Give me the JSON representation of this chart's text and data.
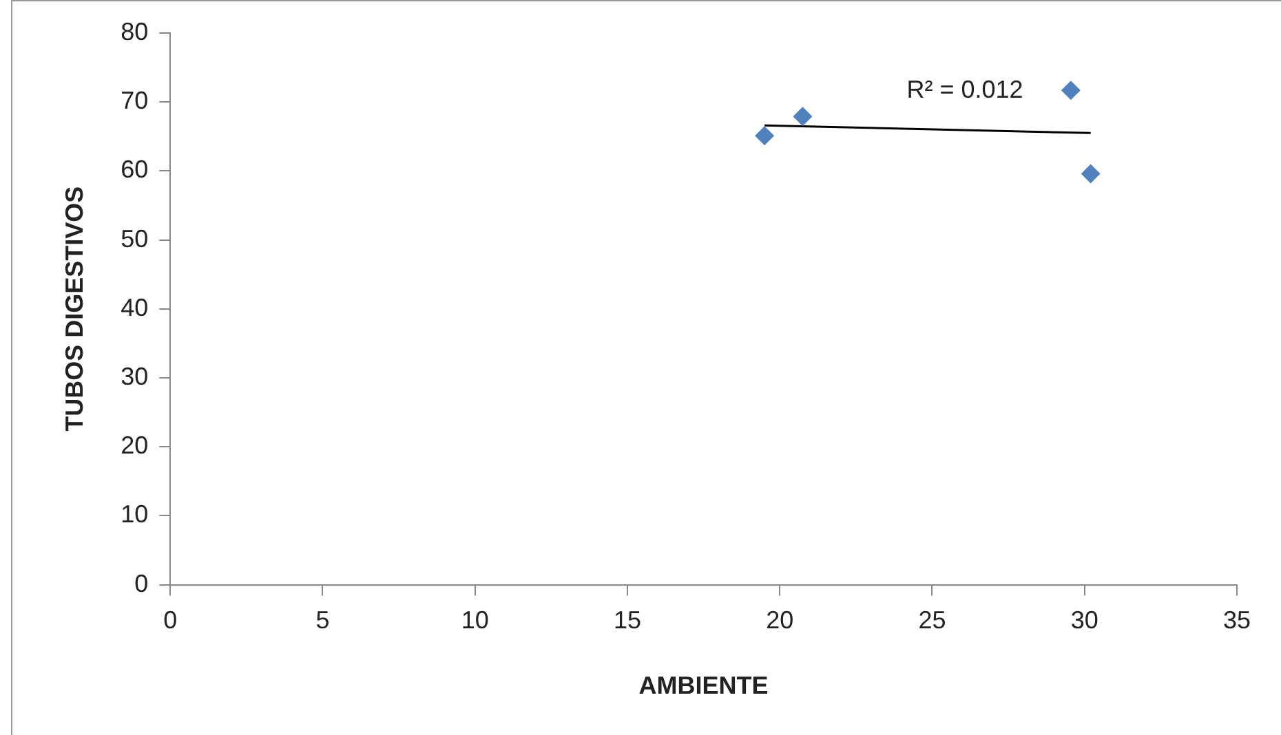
{
  "chart_data": {
    "type": "scatter",
    "xlabel": "AMBIENTE",
    "ylabel": "TUBOS DIGESTIVOS",
    "x": [
      19.5,
      20.75,
      29.55,
      30.2
    ],
    "series": [
      {
        "color": "#4f81bd",
        "marker": "diamond",
        "values": [
          65.1,
          67.9,
          71.7,
          59.6
        ]
      },
      {
        "type": "line",
        "color": "#000000",
        "marker": "none",
        "x": [
          19.5,
          30.2
        ],
        "values": [
          66.6,
          65.5
        ]
      }
    ],
    "xlim": [
      0,
      35
    ],
    "xticks": [
      0,
      5,
      10,
      15,
      20,
      25,
      30,
      35
    ],
    "ylim": [
      0,
      80
    ],
    "yticks": [
      0,
      10,
      20,
      30,
      40,
      50,
      60,
      70,
      80
    ],
    "grid": false,
    "legend": false,
    "annotations": [
      "R² = 0.012"
    ]
  }
}
